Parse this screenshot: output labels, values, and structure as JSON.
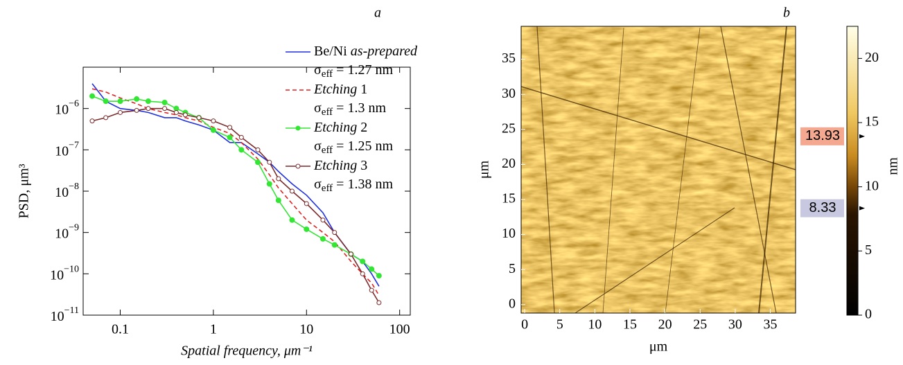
{
  "chart_data": [
    {
      "type": "line",
      "panel_label": "a",
      "xlabel": "Spatial frequency, μm⁻¹",
      "ylabel": "PSD, μm³",
      "xscale": "log",
      "yscale": "log",
      "xlim": [
        0.04,
        130
      ],
      "ylim": [
        1e-11,
        1e-05
      ],
      "xticks": [
        0.1,
        1,
        10,
        100
      ],
      "yticks": [
        {
          "value": 1e-11,
          "label": "10−11"
        },
        {
          "value": 1e-10,
          "label": "10−10"
        },
        {
          "value": 1e-09,
          "label": "10−9"
        },
        {
          "value": 1e-08,
          "label": "10−8"
        },
        {
          "value": 1e-07,
          "label": "10−7"
        },
        {
          "value": 1e-06,
          "label": "10−6"
        }
      ],
      "x": [
        0.05,
        0.07,
        0.1,
        0.15,
        0.2,
        0.3,
        0.4,
        0.5,
        0.7,
        1,
        1.5,
        2,
        3,
        4,
        5,
        7,
        10,
        15,
        20,
        30,
        40,
        50,
        60
      ],
      "series": [
        {
          "name": "Be/Ni as-prepared",
          "sigma": "σeff = 1.27 nm",
          "color": "#1f2fe0",
          "dash": false,
          "marker": null,
          "values": [
            4e-06,
            1.5e-06,
            1e-06,
            9e-07,
            8e-07,
            6e-07,
            6e-07,
            5e-07,
            4e-07,
            3e-07,
            1.5e-07,
            1.5e-07,
            8e-08,
            5e-08,
            3e-08,
            1.5e-08,
            8e-09,
            3e-09,
            1e-09,
            3e-10,
            2e-10,
            1e-10,
            5e-11
          ]
        },
        {
          "name": "Etching 1",
          "sigma": "σeff = 1.3 nm",
          "color": "#e02020",
          "dash": true,
          "marker": null,
          "values": [
            3e-06,
            2.5e-06,
            1.8e-06,
            1.3e-06,
            1e-06,
            8e-07,
            7e-07,
            6e-07,
            5e-07,
            3.5e-07,
            2.5e-07,
            1.5e-07,
            6e-08,
            2.5e-08,
            1.2e-08,
            5e-09,
            2e-09,
            1e-09,
            6e-10,
            2e-10,
            1e-10,
            6e-11,
            3e-11
          ]
        },
        {
          "name": "Etching 2",
          "sigma": "σeff = 1.25 nm",
          "color": "#33e633",
          "dash": false,
          "marker": "dot",
          "values": [
            2e-06,
            1.5e-06,
            1.5e-06,
            1.7e-06,
            1.5e-06,
            1.4e-06,
            1e-06,
            8e-07,
            6e-07,
            3e-07,
            2e-07,
            1e-07,
            5e-08,
            1.5e-08,
            6e-09,
            2e-09,
            1.2e-09,
            7e-10,
            5e-10,
            3e-10,
            2e-10,
            1.3e-10,
            9e-11
          ]
        },
        {
          "name": "Etching 3",
          "sigma": "σeff = 1.38 nm",
          "color": "#7a2a2a",
          "dash": false,
          "marker": "circle",
          "values": [
            5e-07,
            6e-07,
            8e-07,
            9e-07,
            1e-06,
            1e-06,
            8e-07,
            7e-07,
            6e-07,
            5e-07,
            3.5e-07,
            2e-07,
            1e-07,
            5e-08,
            2e-08,
            1e-08,
            5e-09,
            2e-09,
            1e-09,
            3e-10,
            1e-10,
            4e-11,
            2e-11
          ]
        }
      ]
    },
    {
      "type": "image",
      "panel_label": "b",
      "xlabel": "μm",
      "ylabel": "μm",
      "xlim": [
        -0.5,
        38.6
      ],
      "ylim": [
        -1.2,
        39.7
      ],
      "xticks": [
        0,
        5,
        10,
        15,
        20,
        25,
        30,
        35
      ],
      "yticks": [
        0,
        5,
        10,
        15,
        20,
        25,
        30,
        35
      ],
      "colorbar": {
        "label": "nm",
        "lim": [
          0,
          22.5
        ],
        "ticks": [
          0,
          5,
          10,
          15,
          20
        ],
        "markers": [
          {
            "value": 13.93,
            "color": "#f4a890"
          },
          {
            "value": 8.33,
            "color": "#c8c8e0"
          }
        ]
      }
    }
  ]
}
